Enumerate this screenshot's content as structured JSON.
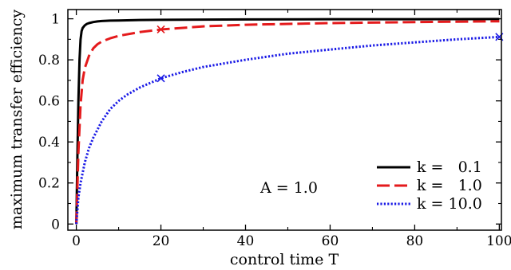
{
  "chart_data": {
    "type": "line",
    "xlabel": "control time T",
    "ylabel": "maximum transfer efficiency",
    "xlim": [
      -2,
      100.5
    ],
    "ylim": [
      -0.03,
      1.045
    ],
    "xticks": [
      0,
      20,
      40,
      60,
      80,
      100
    ],
    "yticks": [
      0,
      0.2,
      0.4,
      0.6,
      0.8,
      1
    ],
    "xtick_labels": [
      "0",
      "20",
      "40",
      "60",
      "80",
      "100"
    ],
    "ytick_labels": [
      "0",
      "0.2",
      "0.4",
      "0.6",
      "0.8",
      "1"
    ],
    "grid": false,
    "legend_position": "bottom-right",
    "annotation": "A = 1.0",
    "series": [
      {
        "name": "k =   0.1",
        "color": "#000000",
        "style": "solid",
        "x": [
          0,
          0.25,
          0.5,
          0.75,
          1,
          1.25,
          1.5,
          2,
          2.5,
          3,
          4,
          5,
          6,
          8,
          10,
          15,
          20,
          30,
          40,
          60,
          80,
          100
        ],
        "y": [
          0,
          0.32,
          0.6,
          0.8,
          0.9,
          0.94,
          0.955,
          0.968,
          0.975,
          0.979,
          0.984,
          0.987,
          0.989,
          0.991,
          0.992,
          0.994,
          0.995,
          0.996,
          0.997,
          0.998,
          0.998,
          0.999
        ]
      },
      {
        "name": "k =   1.0",
        "color": "#e41a1c",
        "style": "dashed",
        "x": [
          0,
          0.5,
          1,
          1.5,
          2,
          3,
          4,
          5,
          6,
          8,
          10,
          15,
          20,
          30,
          40,
          60,
          80,
          100
        ],
        "y": [
          0,
          0.35,
          0.58,
          0.7,
          0.76,
          0.82,
          0.856,
          0.876,
          0.889,
          0.905,
          0.917,
          0.935,
          0.948,
          0.963,
          0.971,
          0.979,
          0.984,
          0.988
        ],
        "markers": [
          {
            "x": 20,
            "y": 0.948
          }
        ]
      },
      {
        "name": "k = 10.0",
        "color": "#1a1ae6",
        "style": "dotted",
        "x": [
          0,
          0.5,
          1,
          2,
          3,
          4,
          5,
          6,
          8,
          10,
          12,
          15,
          20,
          25,
          30,
          40,
          50,
          60,
          70,
          80,
          90,
          100
        ],
        "y": [
          0,
          0.13,
          0.2,
          0.3,
          0.37,
          0.42,
          0.46,
          0.5,
          0.56,
          0.6,
          0.63,
          0.665,
          0.71,
          0.74,
          0.765,
          0.8,
          0.83,
          0.85,
          0.87,
          0.885,
          0.9,
          0.912
        ],
        "markers": [
          {
            "x": 20,
            "y": 0.71
          },
          {
            "x": 100,
            "y": 0.912
          }
        ]
      }
    ]
  }
}
